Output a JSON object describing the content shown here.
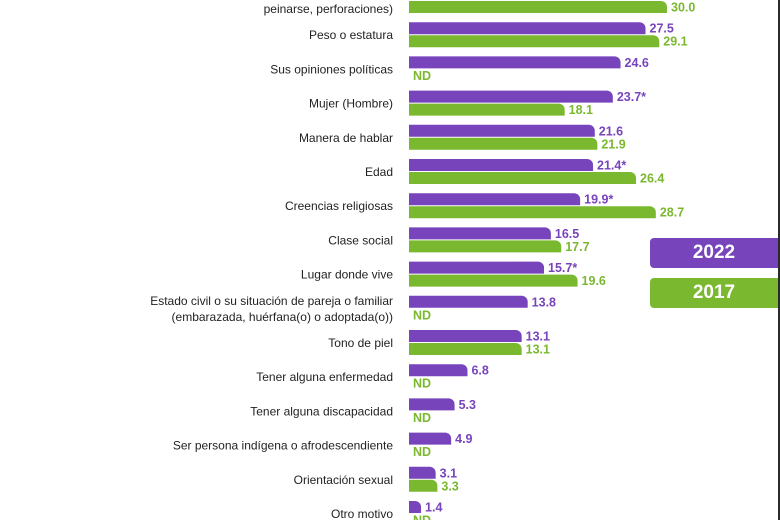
{
  "colors": {
    "s2022": "#7744bb",
    "s2017": "#7ab82f",
    "text": "#222222"
  },
  "legend": {
    "s2022": "2022",
    "s2017": "2017"
  },
  "chart_data": {
    "type": "bar",
    "orientation": "horizontal",
    "categories": [
      [
        "",
        "peinarse, perforaciones)"
      ],
      [
        "Peso o estatura"
      ],
      [
        "Sus opiniones políticas"
      ],
      [
        "Mujer (Hombre)"
      ],
      [
        "Manera de hablar"
      ],
      [
        "Edad"
      ],
      [
        "Creencias religiosas"
      ],
      [
        "Clase social"
      ],
      [
        "Lugar donde vive"
      ],
      [
        "Estado civil o su situación de pareja o familiar",
        "(embarazada, huérfana(o) o adoptada(o))"
      ],
      [
        "Tono de piel"
      ],
      [
        "Tener alguna enfermedad"
      ],
      [
        "Tener alguna discapacidad"
      ],
      [
        "Ser persona indígena o afrodescendiente"
      ],
      [
        "Orientación sexual"
      ],
      [
        "Otro motivo"
      ]
    ],
    "series": [
      {
        "name": "2022",
        "values": [
          null,
          27.5,
          24.6,
          23.7,
          21.6,
          21.4,
          19.9,
          16.5,
          15.7,
          13.8,
          13.1,
          6.8,
          5.3,
          4.9,
          3.1,
          1.4
        ],
        "labels": [
          "",
          "27.5",
          "24.6",
          "23.7*",
          "21.6",
          "21.4*",
          "19.9*",
          "16.5",
          "15.7*",
          "13.8",
          "13.1",
          "6.8",
          "5.3",
          "4.9",
          "3.1",
          "1.4"
        ]
      },
      {
        "name": "2017",
        "values": [
          30.0,
          29.1,
          null,
          18.1,
          21.9,
          26.4,
          28.7,
          17.7,
          19.6,
          null,
          13.1,
          null,
          null,
          null,
          3.3,
          null
        ],
        "labels": [
          "30.0",
          "29.1",
          "ND",
          "18.1",
          "21.9",
          "26.4",
          "28.7",
          "17.7",
          "19.6",
          "ND",
          "13.1",
          "ND",
          "ND",
          "ND",
          "3.3",
          "ND"
        ]
      }
    ],
    "legend_position": "right",
    "grid": false
  }
}
